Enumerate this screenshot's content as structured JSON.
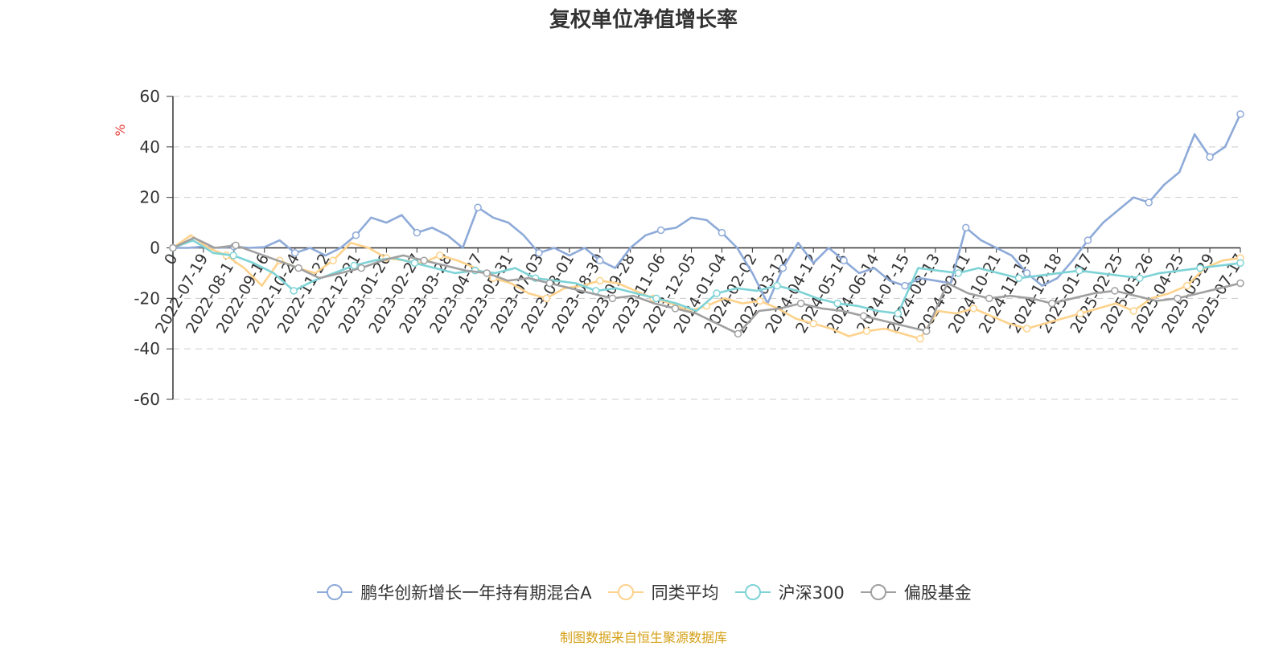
{
  "chart_data": {
    "type": "line",
    "title": "复权单位净值增长率",
    "ylabel": "%",
    "ylim": [
      -60,
      60
    ],
    "yticks": [
      60,
      40,
      20,
      0,
      -20,
      -40,
      -60
    ],
    "x_tick_labels": [
      "0",
      "2022-07-19",
      "2022-08-17",
      "2022-09-16",
      "2022-10-24",
      "2022-11-22",
      "2022-12-21",
      "2023-01-20",
      "2023-02-27",
      "2023-03-28",
      "2023-04-27",
      "2023-05-31",
      "2023-07-03",
      "2023-08-01",
      "2023-08-30",
      "2023-09-28",
      "2023-11-06",
      "2023-12-05",
      "2024-01-04",
      "2024-02-02",
      "2024-03-12",
      "2024-04-12",
      "2024-05-16",
      "2024-06-14",
      "2024-07-15",
      "2024-08-13",
      "2024-09-11",
      "2024-10-21",
      "2024-11-19",
      "2024-12-18",
      "2025-01-17",
      "2025-02-25",
      "2025-03-26",
      "2025-04-25",
      "2025-05-29",
      "2025-07-17"
    ],
    "grid": "dashed horizontal",
    "legend_position": "bottom",
    "source": "制图数据来自恒生聚源数据库",
    "series": [
      {
        "name": "鹏华创新增长一年持有期混合A",
        "color": "#8eaad8",
        "values": [
          0,
          0,
          0.5,
          0,
          0.5,
          0,
          0.3,
          3,
          -2,
          0,
          -3,
          0,
          5,
          12,
          10,
          13,
          6,
          8,
          5,
          0,
          16,
          12,
          10,
          5,
          -2,
          0,
          -3,
          0,
          -5,
          -8,
          0,
          5,
          7,
          8,
          12,
          11,
          6,
          0,
          -10,
          -22,
          -8,
          2,
          -6,
          0,
          -5,
          -10,
          -8,
          -13,
          -15,
          -12,
          -13,
          -14,
          8,
          3,
          0,
          -3,
          -10,
          -15,
          -12,
          -5,
          3,
          10,
          15,
          20,
          18,
          25,
          30,
          45,
          36,
          40,
          53
        ]
      },
      {
        "name": "同类平均",
        "color": "#fdd28c",
        "values": [
          0,
          5,
          0,
          -3,
          -8,
          -15,
          -5,
          -8,
          -10,
          -5,
          2,
          0,
          -4,
          -5,
          -6,
          -3,
          -5,
          -8,
          -12,
          -14,
          -18,
          -20,
          -16,
          -15,
          -13,
          -14,
          -17,
          -20,
          -22,
          -25,
          -23,
          -20,
          -22,
          -21,
          -24,
          -28,
          -30,
          -32,
          -35,
          -33,
          -32,
          -34,
          -36,
          -25,
          -26,
          -24,
          -27,
          -30,
          -32,
          -30,
          -28,
          -26,
          -24,
          -22,
          -25,
          -20,
          -18,
          -15,
          -8,
          -5,
          -4
        ]
      },
      {
        "name": "沪深300",
        "color": "#7ed3d6",
        "values": [
          0,
          3,
          -2,
          -3,
          -6,
          -10,
          -17,
          -13,
          -10,
          -7,
          -5,
          -4,
          -6,
          -8,
          -10,
          -9,
          -10,
          -8,
          -12,
          -13,
          -14,
          -17,
          -16,
          -18,
          -20,
          -22,
          -25,
          -18,
          -16,
          -17,
          -15,
          -17,
          -20,
          -22,
          -23,
          -25,
          -26,
          -8,
          -9,
          -10,
          -8,
          -10,
          -12,
          -11,
          -10,
          -9,
          -10,
          -11,
          -12,
          -10,
          -9,
          -8,
          -7,
          -6
        ]
      },
      {
        "name": "偏股基金",
        "color": "#a0a0a0",
        "values": [
          0,
          4,
          0,
          1,
          -2,
          -5,
          -8,
          -12,
          -10,
          -8,
          -5,
          -3,
          -5,
          -7,
          -9,
          -10,
          -13,
          -12,
          -14,
          -16,
          -18,
          -20,
          -19,
          -22,
          -24,
          -26,
          -30,
          -34,
          -25,
          -24,
          -22,
          -24,
          -25,
          -27,
          -29,
          -31,
          -33,
          -14,
          -18,
          -20,
          -19,
          -20,
          -22,
          -20,
          -18,
          -17,
          -19,
          -21,
          -20,
          -18,
          -16,
          -14
        ]
      }
    ]
  }
}
